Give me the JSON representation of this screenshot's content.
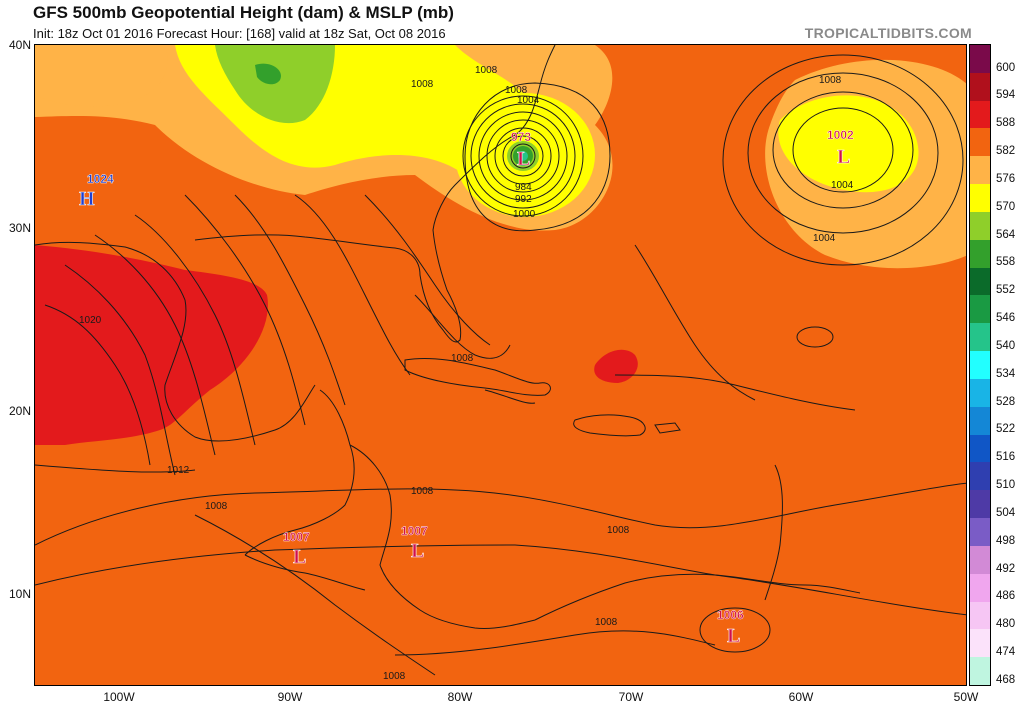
{
  "header": {
    "title": "GFS 500mb Geopotential Height (dam) & MSLP (mb)",
    "subtitle": "Init: 18z Oct 01 2016   Forecast Hour: [168]   valid at 18z Sat, Oct 08 2016",
    "site": "TROPICALTIDBITS.COM"
  },
  "axes": {
    "latitudes": [
      "40N",
      "30N",
      "20N",
      "10N"
    ],
    "longitudes": [
      "100W",
      "90W",
      "80W",
      "70W",
      "60W",
      "50W"
    ]
  },
  "colorbar": {
    "levels": [
      "600",
      "594",
      "588",
      "582",
      "576",
      "570",
      "564",
      "558",
      "552",
      "546",
      "540",
      "534",
      "528",
      "522",
      "516",
      "510",
      "504",
      "498",
      "492",
      "486",
      "480",
      "474",
      "468"
    ],
    "colors": [
      "#7a0a4a",
      "#b0101c",
      "#e31a1c",
      "#f26410",
      "#ffb347",
      "#ffff00",
      "#8fcf2a",
      "#33a02c",
      "#0b6b2a",
      "#1a9a43",
      "#25c48a",
      "#22ffff",
      "#19b4e6",
      "#1487d6",
      "#1056c6",
      "#2f3fb0",
      "#4e3aa6",
      "#7a5cc6",
      "#d28ad6",
      "#f0a6ee",
      "#f6c6f4",
      "#fbe2fa",
      "#bff5e0"
    ]
  },
  "systems": [
    {
      "id": "high-gulf",
      "type": "H",
      "value": "1024",
      "color": "#1f3fd0"
    },
    {
      "id": "low-carolina",
      "type": "L",
      "value": "973",
      "color": "#d0104c"
    },
    {
      "id": "low-atlantic",
      "type": "L",
      "value": "1002",
      "color": "#d0104c"
    },
    {
      "id": "low-guatemala",
      "type": "L",
      "value": "1007",
      "color": "#d0104c"
    },
    {
      "id": "low-caribbean",
      "type": "L",
      "value": "1007",
      "color": "#d0104c"
    },
    {
      "id": "low-venezuela",
      "type": "L",
      "value": "1006",
      "color": "#d0104c"
    }
  ],
  "isobar_labels": [
    "1008",
    "1004",
    "1000",
    "992",
    "984",
    "1004",
    "1008",
    "1004",
    "1008",
    "1020",
    "1008",
    "1012",
    "1008",
    "1008",
    "1008",
    "1008",
    "1008",
    "1008"
  ]
}
